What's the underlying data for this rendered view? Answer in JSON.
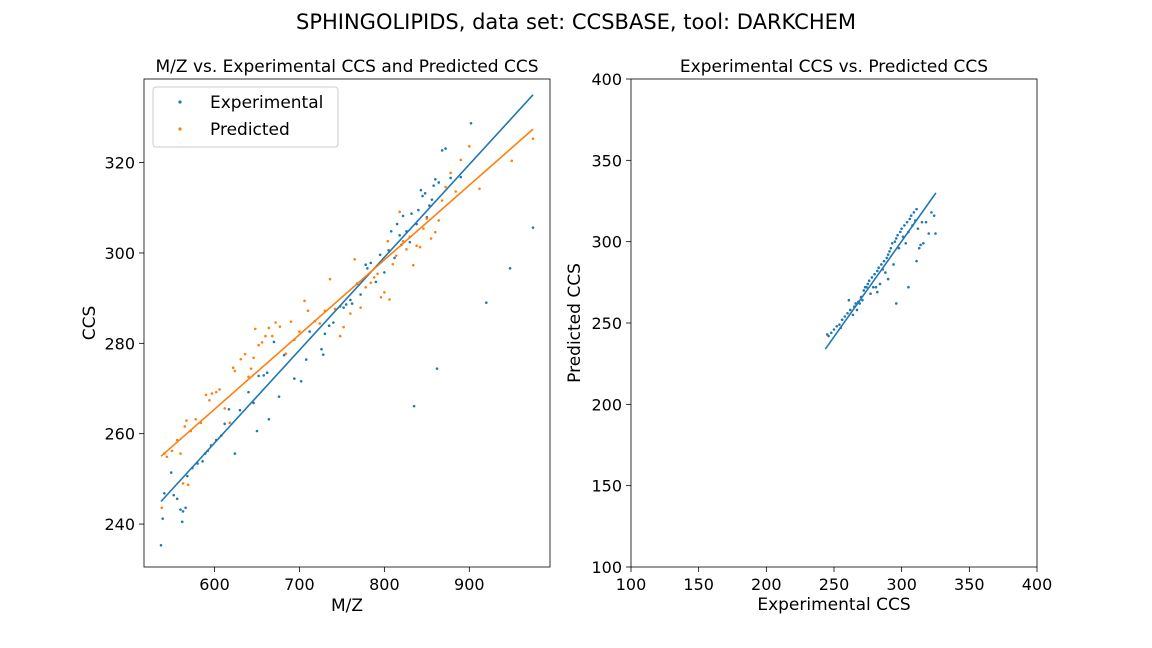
{
  "figure": {
    "suptitle": "SPHINGOLIPIDS, data set: CCSBASE, tool: DARKCHEM"
  },
  "colors": {
    "experimental": "#1f77b4",
    "predicted": "#ff7f0e"
  },
  "chart_data": [
    {
      "type": "scatter",
      "title": "M/Z vs. Experimental CCS and Predicted CCS",
      "xlabel": "M/Z",
      "ylabel": "CCS",
      "xlim": [
        517,
        995
      ],
      "ylim": [
        230.5,
        338.5
      ],
      "xticks": [
        600,
        700,
        800,
        900
      ],
      "yticks": [
        240,
        260,
        280,
        300,
        320
      ],
      "legend": {
        "placement": "upper-left",
        "entries": [
          "Experimental",
          "Predicted"
        ]
      },
      "series": [
        {
          "name": "Experimental",
          "color": "#1f77b4",
          "fit": {
            "x": [
              537,
              975
            ],
            "y": [
              245.0,
              335.0
            ]
          },
          "points": [
            [
              537,
              235.3
            ],
            [
              539,
              241.2
            ],
            [
              541,
              246.8
            ],
            [
              549,
              251.4
            ],
            [
              552,
              246.4
            ],
            [
              556,
              245.6
            ],
            [
              560,
              243.2
            ],
            [
              562,
              240.5
            ],
            [
              563,
              242.8
            ],
            [
              566,
              243.6
            ],
            [
              568,
              250.6
            ],
            [
              574,
              252.4
            ],
            [
              580,
              253.4
            ],
            [
              586,
              253.9
            ],
            [
              589,
              255.6
            ],
            [
              592,
              256.2
            ],
            [
              596,
              257.4
            ],
            [
              602,
              258.6
            ],
            [
              608,
              259.6
            ],
            [
              612,
              262.2
            ],
            [
              617,
              265.4
            ],
            [
              624,
              255.6
            ],
            [
              630,
              265.2
            ],
            [
              640,
              269.2
            ],
            [
              646,
              266.8
            ],
            [
              650,
              260.6
            ],
            [
              652,
              272.8
            ],
            [
              658,
              272.9
            ],
            [
              662,
              273.5
            ],
            [
              664,
              263.2
            ],
            [
              670,
              280.3
            ],
            [
              676,
              268.2
            ],
            [
              682,
              277.4
            ],
            [
              694,
              272.2
            ],
            [
              702,
              271.6
            ],
            [
              708,
              276.4
            ],
            [
              712,
              282.6
            ],
            [
              726,
              278.7
            ],
            [
              728,
              277.5
            ],
            [
              730,
              282.1
            ],
            [
              735,
              283.9
            ],
            [
              740,
              284.6
            ],
            [
              748,
              288.2
            ],
            [
              752,
              287.9
            ],
            [
              755,
              288.6
            ],
            [
              760,
              289.6
            ],
            [
              762,
              288.8
            ],
            [
              768,
              293.2
            ],
            [
              772,
              290.8
            ],
            [
              778,
              297.4
            ],
            [
              780,
              296.6
            ],
            [
              784,
              297.8
            ],
            [
              790,
              293.6
            ],
            [
              795,
              299.6
            ],
            [
              800,
              295.7
            ],
            [
              805,
              300.6
            ],
            [
              808,
              304.8
            ],
            [
              812,
              298.9
            ],
            [
              815,
              306.4
            ],
            [
              818,
              303.9
            ],
            [
              820,
              301.8
            ],
            [
              822,
              308.2
            ],
            [
              826,
              304.8
            ],
            [
              830,
              302.4
            ],
            [
              832,
              308.7
            ],
            [
              835,
              266.1
            ],
            [
              838,
              306.4
            ],
            [
              840,
              309.5
            ],
            [
              843,
              313.9
            ],
            [
              845,
              312.6
            ],
            [
              848,
              313.2
            ],
            [
              850,
              307.9
            ],
            [
              853,
              310.5
            ],
            [
              856,
              311.8
            ],
            [
              858,
              314.9
            ],
            [
              860,
              316.3
            ],
            [
              862,
              274.4
            ],
            [
              864,
              315.6
            ],
            [
              868,
              322.7
            ],
            [
              872,
              323.1
            ],
            [
              878,
              316.6
            ],
            [
              890,
              316.8
            ],
            [
              902,
              328.7
            ],
            [
              920,
              289.0
            ],
            [
              948,
              296.6
            ],
            [
              975,
              305.6
            ]
          ]
        },
        {
          "name": "Predicted",
          "color": "#ff7f0e",
          "fit": {
            "x": [
              537,
              975
            ],
            "y": [
              255.0,
              327.4
            ]
          },
          "points": [
            [
              538,
              243.6
            ],
            [
              541,
              255.6
            ],
            [
              544,
              254.9
            ],
            [
              550,
              256.2
            ],
            [
              556,
              258.6
            ],
            [
              560,
              255.6
            ],
            [
              563,
              249.0
            ],
            [
              565,
              261.6
            ],
            [
              567,
              262.9
            ],
            [
              569,
              248.7
            ],
            [
              572,
              260.6
            ],
            [
              578,
              263.2
            ],
            [
              584,
              262.4
            ],
            [
              590,
              268.6
            ],
            [
              594,
              267.4
            ],
            [
              597,
              268.9
            ],
            [
              602,
              269.2
            ],
            [
              606,
              269.8
            ],
            [
              612,
              265.6
            ],
            [
              618,
              262.4
            ],
            [
              622,
              274.6
            ],
            [
              624,
              273.9
            ],
            [
              631,
              276.5
            ],
            [
              636,
              277.6
            ],
            [
              640,
              272.6
            ],
            [
              643,
              274.4
            ],
            [
              646,
              276.8
            ],
            [
              648,
              283.2
            ],
            [
              652,
              279.6
            ],
            [
              656,
              280.2
            ],
            [
              660,
              281.6
            ],
            [
              664,
              283.4
            ],
            [
              668,
              281.6
            ],
            [
              672,
              284.6
            ],
            [
              677,
              283.7
            ],
            [
              684,
              277.7
            ],
            [
              690,
              284.8
            ],
            [
              694,
              280.8
            ],
            [
              700,
              282.6
            ],
            [
              706,
              289.4
            ],
            [
              710,
              287.2
            ],
            [
              718,
              284.9
            ],
            [
              724,
              284.4
            ],
            [
              730,
              287.2
            ],
            [
              736,
              294.2
            ],
            [
              742,
              287.6
            ],
            [
              748,
              281.6
            ],
            [
              752,
              283.6
            ],
            [
              760,
              286.6
            ],
            [
              765,
              298.6
            ],
            [
              772,
              287.9
            ],
            [
              778,
              292.4
            ],
            [
              784,
              293.4
            ],
            [
              788,
              294.6
            ],
            [
              792,
              295.4
            ],
            [
              796,
              290.2
            ],
            [
              800,
              291.3
            ],
            [
              804,
              302.6
            ],
            [
              806,
              289.7
            ],
            [
              810,
              297.5
            ],
            [
              814,
              299.4
            ],
            [
              818,
              309.1
            ],
            [
              822,
              302.6
            ],
            [
              826,
              300.8
            ],
            [
              830,
              303.6
            ],
            [
              834,
              297.3
            ],
            [
              838,
              301.6
            ],
            [
              842,
              301.3
            ],
            [
              846,
              305.4
            ],
            [
              850,
              307.6
            ],
            [
              855,
              303.2
            ],
            [
              860,
              304.6
            ],
            [
              864,
              307.2
            ],
            [
              868,
              311.6
            ],
            [
              872,
              314.6
            ],
            [
              878,
              317.7
            ],
            [
              884,
              313.6
            ],
            [
              890,
              320.6
            ],
            [
              900,
              323.6
            ],
            [
              912,
              314.2
            ],
            [
              950,
              320.4
            ],
            [
              975,
              325.3
            ]
          ]
        }
      ]
    },
    {
      "type": "scatter",
      "title": "Experimental CCS vs. Predicted CCS",
      "xlabel": "Experimental CCS",
      "ylabel": "Predicted CCS",
      "xlim": [
        100,
        400
      ],
      "ylim": [
        100,
        400
      ],
      "xticks": [
        100,
        150,
        200,
        250,
        300,
        350,
        400
      ],
      "yticks": [
        100,
        150,
        200,
        250,
        300,
        350,
        400
      ],
      "series": [
        {
          "name": "",
          "color": "#1f77b4",
          "fit": {
            "x": [
              243.6,
              325.3
            ],
            "y": [
              234.0,
              330.0
            ]
          },
          "points": [
            [
              245,
              243
            ],
            [
              246,
              242
            ],
            [
              248,
              244
            ],
            [
              250,
              246
            ],
            [
              252,
              248
            ],
            [
              254,
              249
            ],
            [
              255,
              247
            ],
            [
              256,
              252
            ],
            [
              258,
              254
            ],
            [
              260,
              256
            ],
            [
              261,
              264
            ],
            [
              262,
              258
            ],
            [
              264,
              255
            ],
            [
              265,
              260
            ],
            [
              266,
              262
            ],
            [
              267,
              258
            ],
            [
              268,
              263
            ],
            [
              270,
              266
            ],
            [
              271,
              264
            ],
            [
              272,
              270
            ],
            [
              273,
              272
            ],
            [
              274,
              272
            ],
            [
              275,
              274
            ],
            [
              276,
              276
            ],
            [
              277,
              268
            ],
            [
              278,
              278
            ],
            [
              279,
              272
            ],
            [
              280,
              280
            ],
            [
              281,
              272
            ],
            [
              282,
              282
            ],
            [
              283,
              284
            ],
            [
              284,
              274
            ],
            [
              285,
              286
            ],
            [
              286,
              283
            ],
            [
              287,
              288
            ],
            [
              288,
              281
            ],
            [
              289,
              290
            ],
            [
              290,
              292
            ],
            [
              291,
              294
            ],
            [
              292,
              296
            ],
            [
              293,
              299
            ],
            [
              294,
              286
            ],
            [
              295,
              300
            ],
            [
              296,
              302
            ],
            [
              297,
              304
            ],
            [
              298,
              296
            ],
            [
              299,
              306
            ],
            [
              300,
              308
            ],
            [
              301,
              303
            ],
            [
              302,
              310
            ],
            [
              303,
              299
            ],
            [
              304,
              312
            ],
            [
              305,
              306
            ],
            [
              306,
              314
            ],
            [
              307,
              316
            ],
            [
              308,
              310
            ],
            [
              309,
              318
            ],
            [
              310,
              313
            ],
            [
              311,
              320
            ],
            [
              312,
              308
            ],
            [
              313,
              296
            ],
            [
              314,
              298
            ],
            [
              315,
              312
            ],
            [
              316,
              299
            ],
            [
              318,
              312
            ],
            [
              320,
              305
            ],
            [
              322,
              318
            ],
            [
              324,
              316
            ],
            [
              325,
              305
            ],
            [
              296,
              262
            ],
            [
              305,
              272
            ],
            [
              311,
              288
            ],
            [
              269,
              262
            ],
            [
              282,
              269
            ],
            [
              290,
              277
            ]
          ]
        }
      ]
    }
  ]
}
